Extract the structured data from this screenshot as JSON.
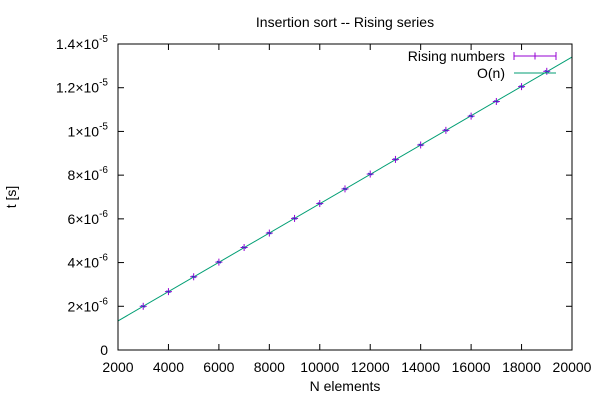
{
  "chart_data": {
    "type": "line",
    "title": "Insertion sort -- Rising series",
    "xlabel": "N elements",
    "ylabel": "t [s]",
    "xlim": [
      2000,
      20000
    ],
    "ylim": [
      0,
      1.4e-05
    ],
    "x_ticks": [
      {
        "value": 2000,
        "label": "2000"
      },
      {
        "value": 4000,
        "label": "4000"
      },
      {
        "value": 6000,
        "label": "6000"
      },
      {
        "value": 8000,
        "label": "8000"
      },
      {
        "value": 10000,
        "label": "10000"
      },
      {
        "value": 12000,
        "label": "12000"
      },
      {
        "value": 14000,
        "label": "14000"
      },
      {
        "value": 16000,
        "label": "16000"
      },
      {
        "value": 18000,
        "label": "18000"
      },
      {
        "value": 20000,
        "label": "20000"
      }
    ],
    "y_ticks": [
      {
        "value": 0,
        "mantissa": "0",
        "exp": ""
      },
      {
        "value": 2e-06,
        "mantissa": "2×10",
        "exp": "-6"
      },
      {
        "value": 4e-06,
        "mantissa": "4×10",
        "exp": "-6"
      },
      {
        "value": 6e-06,
        "mantissa": "6×10",
        "exp": "-6"
      },
      {
        "value": 8e-06,
        "mantissa": "8×10",
        "exp": "-6"
      },
      {
        "value": 1e-05,
        "mantissa": "1×10",
        "exp": "-5"
      },
      {
        "value": 1.2e-05,
        "mantissa": "1.2×10",
        "exp": "-5"
      },
      {
        "value": 1.4e-05,
        "mantissa": "1.4×10",
        "exp": "-5"
      }
    ],
    "grid": false,
    "legend_position": "top-right",
    "series": [
      {
        "name": "Rising numbers",
        "style": "points-with-errorbars",
        "color": "#9400d3",
        "marker_color": "#1f3fbf",
        "x": [
          3000,
          4000,
          5000,
          6000,
          7000,
          8000,
          9000,
          10000,
          11000,
          12000,
          13000,
          14000,
          15000,
          16000,
          17000,
          18000,
          19000
        ],
        "y": [
          2e-06,
          2.67e-06,
          3.35e-06,
          4.02e-06,
          4.69e-06,
          5.35e-06,
          6.02e-06,
          6.7e-06,
          7.37e-06,
          8.05e-06,
          8.72e-06,
          9.38e-06,
          1.005e-05,
          1.07e-05,
          1.137e-05,
          1.205e-05,
          1.275e-05
        ]
      },
      {
        "name": "O(n)",
        "style": "line",
        "color": "#009e73",
        "x": [
          2000,
          20000
        ],
        "y": [
          1.33e-06,
          1.34e-05
        ]
      }
    ]
  }
}
